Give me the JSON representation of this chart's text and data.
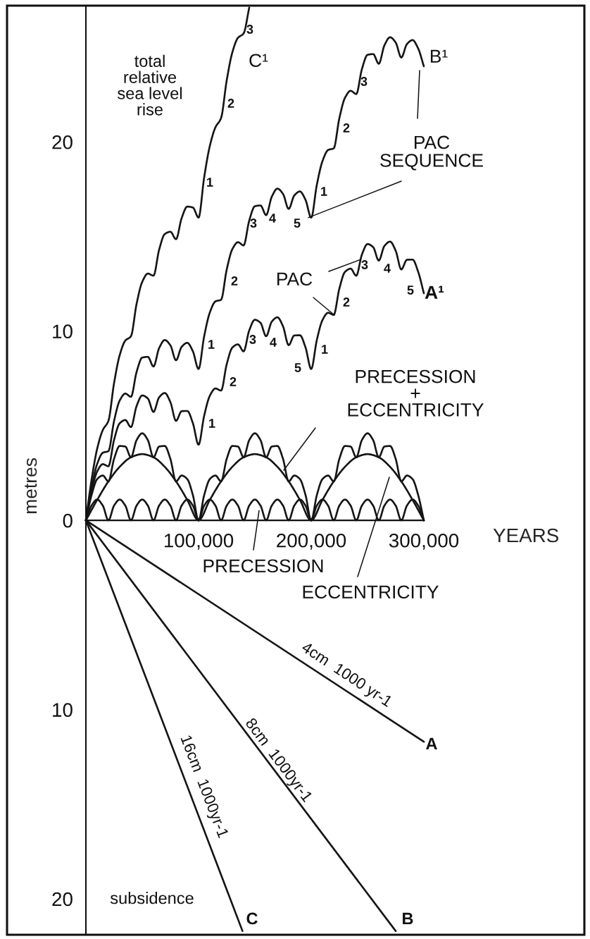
{
  "chart_data": {
    "type": "line",
    "xlabel": "YEARS",
    "ylabel": "metres",
    "xlim": [
      -70000,
      442500
    ],
    "ylim": [
      -21.9,
      27.2
    ],
    "xticks": [
      {
        "value": 100000,
        "label": "100,000"
      },
      {
        "value": 200000,
        "label": "200,000"
      },
      {
        "value": 300000,
        "label": "300,000"
      }
    ],
    "yticks": [
      {
        "value": -20,
        "label": "20"
      },
      {
        "value": -10,
        "label": "10"
      },
      0,
      10,
      20
    ],
    "series": [
      {
        "color": "#151515",
        "x": [
          0,
          5000,
          10000,
          15000,
          20000,
          25000,
          30000,
          35000,
          40000,
          45000,
          50000,
          55000,
          60000,
          65000,
          70000,
          75000,
          80000,
          85000,
          90000,
          95000,
          100000,
          105000,
          110000,
          115000,
          120000,
          125000,
          130000,
          135000,
          140000,
          145000,
          150000,
          155000,
          160000,
          165000,
          170000,
          175000,
          180000,
          185000,
          190000,
          195000,
          200000,
          205000,
          210000,
          215000,
          220000,
          225000,
          230000,
          235000,
          240000,
          245000,
          250000,
          255000,
          260000,
          265000,
          270000,
          275000,
          280000,
          285000,
          290000,
          295000,
          300000
        ],
        "values": [
          0,
          0.78,
          1.1,
          0.78,
          0,
          0.78,
          1.1,
          0.78,
          0,
          0.78,
          1.1,
          0.78,
          0,
          0.78,
          1.1,
          0.78,
          0,
          0.78,
          1.1,
          0.78,
          0,
          0.78,
          1.1,
          0.78,
          0,
          0.78,
          1.1,
          0.78,
          0,
          0.78,
          1.1,
          0.78,
          0,
          0.78,
          1.1,
          0.78,
          0,
          0.78,
          1.1,
          0.78,
          0,
          0.78,
          1.1,
          0.78,
          0,
          0.78,
          1.1,
          0.78,
          0,
          0.78,
          1.1,
          0.78,
          0,
          0.78,
          1.1,
          0.78,
          0,
          0.78,
          1.1,
          0.78,
          0
        ]
      },
      {
        "color": "#151515",
        "x": [
          0,
          10000,
          20000,
          30000,
          40000,
          50000,
          60000,
          70000,
          80000,
          90000,
          100000,
          110000,
          120000,
          130000,
          140000,
          150000,
          160000,
          170000,
          180000,
          190000,
          200000,
          210000,
          220000,
          230000,
          240000,
          250000,
          260000,
          270000,
          280000,
          290000,
          300000
        ],
        "values": [
          0,
          1.08,
          2.06,
          2.83,
          3.33,
          3.5,
          3.33,
          2.83,
          2.06,
          1.08,
          0,
          1.08,
          2.06,
          2.83,
          3.33,
          3.5,
          3.33,
          2.83,
          2.06,
          1.08,
          0,
          1.08,
          2.06,
          2.83,
          3.33,
          3.5,
          3.33,
          2.83,
          2.06,
          1.08,
          0
        ]
      },
      {
        "color": "#151515",
        "x": [
          0,
          5000,
          10000,
          15000,
          20000,
          25000,
          30000,
          35000,
          40000,
          45000,
          50000,
          55000,
          60000,
          65000,
          70000,
          75000,
          80000,
          85000,
          90000,
          95000,
          100000,
          105000,
          110000,
          115000,
          120000,
          125000,
          130000,
          135000,
          140000,
          145000,
          150000,
          155000,
          160000,
          165000,
          170000,
          175000,
          180000,
          185000,
          190000,
          195000,
          200000,
          205000,
          210000,
          215000,
          220000,
          225000,
          230000,
          235000,
          240000,
          245000,
          250000,
          255000,
          260000,
          265000,
          270000,
          275000,
          280000,
          285000,
          290000,
          295000,
          300000
        ],
        "values": [
          0,
          1.33,
          2.18,
          2.37,
          2.06,
          3.25,
          3.93,
          3.9,
          3.33,
          4.24,
          4.6,
          4.24,
          3.33,
          3.9,
          3.93,
          3.25,
          2.06,
          2.37,
          2.18,
          1.33,
          0,
          1.33,
          2.18,
          2.37,
          2.06,
          3.25,
          3.93,
          3.9,
          3.33,
          4.24,
          4.6,
          4.24,
          3.33,
          3.9,
          3.93,
          3.25,
          2.06,
          2.37,
          2.18,
          1.33,
          0,
          1.33,
          2.18,
          2.37,
          2.06,
          3.25,
          3.93,
          3.9,
          3.33,
          4.24,
          4.6,
          4.24,
          3.33,
          3.9,
          3.93,
          3.25,
          2.06,
          2.37,
          2.18,
          1.33,
          0
        ]
      },
      {
        "color": "#151515",
        "x": [
          0,
          5000,
          10000,
          15000,
          20000,
          25000,
          30000,
          35000,
          40000,
          45000,
          50000,
          55000,
          60000,
          65000,
          70000,
          75000,
          80000,
          85000,
          90000,
          95000,
          100000,
          105000,
          110000,
          115000,
          120000,
          125000,
          130000,
          135000,
          140000,
          145000,
          150000,
          155000,
          160000,
          165000,
          170000,
          175000,
          180000,
          185000,
          190000,
          195000,
          200000,
          205000,
          210000,
          215000,
          220000,
          225000,
          230000,
          235000,
          240000,
          245000,
          250000,
          255000,
          260000,
          265000,
          270000,
          275000,
          280000,
          285000,
          290000,
          295000,
          300000
        ],
        "values": [
          0,
          1.53,
          2.58,
          2.97,
          2.86,
          4.25,
          5.13,
          5.3,
          4.93,
          6.04,
          6.6,
          6.44,
          5.73,
          6.5,
          6.73,
          6.25,
          5.26,
          5.77,
          5.78,
          5.13,
          4,
          5.53,
          6.58,
          6.97,
          6.86,
          8.25,
          9.13,
          9.3,
          8.93,
          10.04,
          10.6,
          10.44,
          9.73,
          10.5,
          10.73,
          10.25,
          9.26,
          9.77,
          9.78,
          9.13,
          8,
          9.53,
          10.58,
          10.97,
          10.86,
          12.25,
          13.13,
          13.3,
          12.93,
          14.04,
          14.6,
          14.44,
          13.73,
          14.5,
          14.73,
          14.25,
          13.26,
          13.77,
          13.78,
          13.13,
          12
        ]
      },
      {
        "color": "#151515",
        "x": [
          0,
          5000,
          10000,
          15000,
          20000,
          25000,
          30000,
          35000,
          40000,
          45000,
          50000,
          55000,
          60000,
          65000,
          70000,
          75000,
          80000,
          85000,
          90000,
          95000,
          100000,
          105000,
          110000,
          115000,
          120000,
          125000,
          130000,
          135000,
          140000,
          145000,
          150000,
          155000,
          160000,
          165000,
          170000,
          175000,
          180000,
          185000,
          190000,
          195000,
          200000,
          205000,
          210000,
          215000,
          220000,
          225000,
          230000,
          235000,
          240000,
          245000,
          250000,
          255000,
          260000,
          265000,
          270000,
          275000,
          280000,
          285000,
          290000,
          295000,
          300000
        ],
        "values": [
          0,
          1.73,
          2.98,
          3.57,
          3.66,
          5.25,
          6.33,
          6.7,
          6.53,
          7.84,
          8.6,
          8.64,
          8.13,
          9.1,
          9.53,
          9.25,
          8.46,
          9.17,
          9.38,
          8.93,
          8,
          9.73,
          10.98,
          11.57,
          11.66,
          13.25,
          14.33,
          14.7,
          14.53,
          15.84,
          16.6,
          16.64,
          16.13,
          17.1,
          17.53,
          17.25,
          16.46,
          17.17,
          17.38,
          16.93,
          16,
          17.73,
          18.98,
          19.57,
          19.66,
          21.25,
          22.33,
          22.7,
          22.53,
          23.84,
          24.6,
          24.64,
          24.13,
          25.1,
          25.53,
          25.25,
          24.46,
          25.17,
          25.38,
          24.93,
          24
        ]
      },
      {
        "color": "#151515",
        "x": [
          0,
          5000,
          10000,
          15000,
          20000,
          25000,
          30000,
          35000,
          40000,
          45000,
          50000,
          55000,
          60000,
          65000,
          70000,
          75000,
          80000,
          85000,
          90000,
          95000,
          100000,
          105000,
          110000,
          115000,
          120000,
          125000,
          130000,
          135000,
          140000,
          145000
        ],
        "values": [
          0,
          2.13,
          3.78,
          4.77,
          5.26,
          7.25,
          8.73,
          9.5,
          9.73,
          11.44,
          12.6,
          13.04,
          12.93,
          14.3,
          15.13,
          15.25,
          14.86,
          15.97,
          16.58,
          16.53,
          16,
          18.13,
          19.78,
          20.77,
          21.26,
          23.25,
          24.73,
          25.5,
          25.73,
          27.1
        ]
      },
      {
        "color": "#151515",
        "x": [
          0,
          300000
        ],
        "values": [
          0,
          -11.7
        ]
      },
      {
        "color": "#151515",
        "x": [
          0,
          275000
        ],
        "values": [
          0,
          -21.7
        ]
      },
      {
        "color": "#151515",
        "x": [
          0,
          139000
        ],
        "values": [
          0,
          -21.7
        ]
      }
    ],
    "annotations": [
      "total\nrelative\nsea level\nrise",
      "C¹",
      "3",
      "2",
      "1",
      "B¹",
      "3",
      "2",
      "1",
      "5",
      "4",
      "3",
      "2",
      "1",
      "A¹",
      "5",
      "4",
      "3",
      "2",
      "1",
      "5",
      "4",
      "3",
      "2",
      "1",
      {
        "text": "PAC\nSEQUENCE",
        "x": 197500,
        "y": 16.0
      },
      {
        "text": "PAC",
        "x": 243750,
        "y": 13.78
      },
      "PRECESSION\n+\nECCENTRICITY",
      {
        "text": "PRECESSION",
        "x": 153750,
        "y": 0.52
      },
      "ECCENTRICITY",
      "4cm  1000 yr-1",
      "8cm  1000yr-1",
      "16cm  1000yr-1",
      "A",
      "B",
      "C",
      "subsidence"
    ]
  }
}
